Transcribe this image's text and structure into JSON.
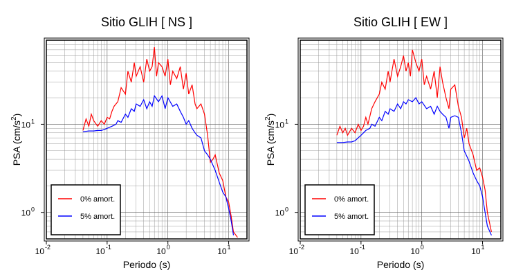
{
  "chart_data": [
    {
      "type": "line",
      "title": "Sitio GLIH [ NS ]",
      "xlabel": "Periodo (s)",
      "ylabel": "PSA (cm/s",
      "ylabel_sup": "2",
      "ylabel_close": ")",
      "xscale": "log",
      "yscale": "log",
      "xlim": [
        0.01,
        20
      ],
      "ylim": [
        0.5,
        90
      ],
      "grid": true,
      "legend_position": "bottom-left",
      "xticks": [
        {
          "v": 0.01,
          "base": "10",
          "exp": "-2"
        },
        {
          "v": 0.1,
          "base": "10",
          "exp": "-1"
        },
        {
          "v": 1,
          "base": "10",
          "exp": "0"
        },
        {
          "v": 10,
          "base": "10",
          "exp": "1"
        }
      ],
      "yticks": [
        {
          "v": 1,
          "base": "10",
          "exp": "0"
        },
        {
          "v": 10,
          "base": "10",
          "exp": "1"
        }
      ],
      "series": [
        {
          "name": "0% amort.",
          "color": "#ff0000",
          "x": [
            0.04,
            0.045,
            0.05,
            0.055,
            0.06,
            0.07,
            0.08,
            0.09,
            0.1,
            0.11,
            0.12,
            0.13,
            0.15,
            0.17,
            0.2,
            0.22,
            0.25,
            0.28,
            0.3,
            0.35,
            0.4,
            0.45,
            0.5,
            0.55,
            0.6,
            0.65,
            0.7,
            0.8,
            0.9,
            1.0,
            1.1,
            1.2,
            1.4,
            1.6,
            1.8,
            2.0,
            2.2,
            2.5,
            2.8,
            3.0,
            3.5,
            4.0,
            4.5,
            5.0,
            5.5,
            6.0,
            7.0,
            8.0,
            9.0,
            10.0,
            11.0,
            12.0,
            14.0
          ],
          "y": [
            8.5,
            11.5,
            9.5,
            13.0,
            11.0,
            9.5,
            11.0,
            10.0,
            12.0,
            11.5,
            14.0,
            16.0,
            18.0,
            26.0,
            22.0,
            40.0,
            30.0,
            50.0,
            35.0,
            45.0,
            30.0,
            55.0,
            40.0,
            45.0,
            75.0,
            35.0,
            50.0,
            45.0,
            35.0,
            55.0,
            28.0,
            40.0,
            33.0,
            45.0,
            25.0,
            38.0,
            22.0,
            28.0,
            17.0,
            15.0,
            17.0,
            13.0,
            7.5,
            3.7,
            4.0,
            4.5,
            2.8,
            2.3,
            1.5,
            1.3,
            0.9,
            0.6,
            0.52
          ]
        },
        {
          "name": "5% amort.",
          "color": "#0000ff",
          "x": [
            0.04,
            0.05,
            0.06,
            0.07,
            0.08,
            0.09,
            0.1,
            0.12,
            0.14,
            0.15,
            0.17,
            0.2,
            0.22,
            0.25,
            0.28,
            0.3,
            0.35,
            0.4,
            0.45,
            0.5,
            0.55,
            0.6,
            0.7,
            0.8,
            0.9,
            1.0,
            1.2,
            1.4,
            1.6,
            1.8,
            2.0,
            2.2,
            2.5,
            2.8,
            3.0,
            3.5,
            4.0,
            4.5,
            5.0,
            6.0,
            7.0,
            8.0,
            9.0,
            10.0,
            11.0,
            12.0
          ],
          "y": [
            8.2,
            8.4,
            8.4,
            8.5,
            8.5,
            8.7,
            9.0,
            9.5,
            10.0,
            11.0,
            10.5,
            13.0,
            12.0,
            15.0,
            14.0,
            17.0,
            16.0,
            19.0,
            15.0,
            18.0,
            16.0,
            21.0,
            18.0,
            21.0,
            15.0,
            20.0,
            16.0,
            17.0,
            14.0,
            12.0,
            10.0,
            11.0,
            9.0,
            8.0,
            7.5,
            7.0,
            5.0,
            4.5,
            4.0,
            3.0,
            2.2,
            1.7,
            1.5,
            1.1,
            0.8,
            0.55
          ]
        }
      ]
    },
    {
      "type": "line",
      "title": "Sitio GLIH [ EW ]",
      "xlabel": "Periodo (s)",
      "ylabel": "PSA (cm/s",
      "ylabel_sup": "2",
      "ylabel_close": ")",
      "xscale": "log",
      "yscale": "log",
      "xlim": [
        0.01,
        20
      ],
      "ylim": [
        0.5,
        90
      ],
      "grid": true,
      "legend_position": "bottom-left",
      "xticks": [
        {
          "v": 0.01,
          "base": "10",
          "exp": "-2"
        },
        {
          "v": 0.1,
          "base": "10",
          "exp": "-1"
        },
        {
          "v": 1,
          "base": "10",
          "exp": "0"
        },
        {
          "v": 10,
          "base": "10",
          "exp": "1"
        }
      ],
      "yticks": [
        {
          "v": 1,
          "base": "10",
          "exp": "0"
        },
        {
          "v": 10,
          "base": "10",
          "exp": "1"
        }
      ],
      "series": [
        {
          "name": "0% amort.",
          "color": "#ff0000",
          "x": [
            0.04,
            0.045,
            0.05,
            0.055,
            0.06,
            0.07,
            0.08,
            0.09,
            0.1,
            0.11,
            0.12,
            0.13,
            0.15,
            0.17,
            0.2,
            0.22,
            0.25,
            0.28,
            0.3,
            0.35,
            0.4,
            0.45,
            0.5,
            0.55,
            0.6,
            0.65,
            0.7,
            0.8,
            0.9,
            1.0,
            1.1,
            1.2,
            1.4,
            1.6,
            1.8,
            2.0,
            2.2,
            2.5,
            2.8,
            3.0,
            3.5,
            4.0,
            4.5,
            5.0,
            5.5,
            6.0,
            7.0,
            8.0,
            9.0,
            10.0,
            11.0,
            12.0,
            14.0
          ],
          "y": [
            7.5,
            9.5,
            8.0,
            9.0,
            7.5,
            9.0,
            8.0,
            10.0,
            8.5,
            9.5,
            12.0,
            10.0,
            15.0,
            18.0,
            22.0,
            30.0,
            25.0,
            40.0,
            30.0,
            55.0,
            35.0,
            45.0,
            60.0,
            40.0,
            50.0,
            35.0,
            70.0,
            50.0,
            40.0,
            55.0,
            28.0,
            35.0,
            25.0,
            40.0,
            20.0,
            45.0,
            30.0,
            20.0,
            15.0,
            25.0,
            28.0,
            16.0,
            12.0,
            7.0,
            9.0,
            6.0,
            4.5,
            3.0,
            3.2,
            2.5,
            1.8,
            1.0,
            0.6
          ]
        },
        {
          "name": "5% amort.",
          "color": "#0000ff",
          "x": [
            0.04,
            0.05,
            0.06,
            0.07,
            0.08,
            0.09,
            0.1,
            0.12,
            0.14,
            0.15,
            0.17,
            0.2,
            0.22,
            0.25,
            0.28,
            0.3,
            0.35,
            0.4,
            0.45,
            0.5,
            0.55,
            0.6,
            0.7,
            0.8,
            0.9,
            1.0,
            1.2,
            1.4,
            1.6,
            1.8,
            2.0,
            2.2,
            2.5,
            2.8,
            3.0,
            3.5,
            4.0,
            4.5,
            5.0,
            6.0,
            7.0,
            8.0,
            9.0,
            10.0,
            11.0,
            12.0,
            14.0
          ],
          "y": [
            6.2,
            6.2,
            6.3,
            6.3,
            6.5,
            7.0,
            7.5,
            8.5,
            9.0,
            10.0,
            9.5,
            12.0,
            11.0,
            14.0,
            13.0,
            15.0,
            14.0,
            17.0,
            15.0,
            18.0,
            17.0,
            19.0,
            18.0,
            20.0,
            17.0,
            18.0,
            15.0,
            16.0,
            13.0,
            16.0,
            14.0,
            13.0,
            12.0,
            9.0,
            12.0,
            12.5,
            12.0,
            8.0,
            5.0,
            3.8,
            2.8,
            2.3,
            2.0,
            1.5,
            1.0,
            0.7,
            0.55
          ]
        }
      ]
    }
  ]
}
